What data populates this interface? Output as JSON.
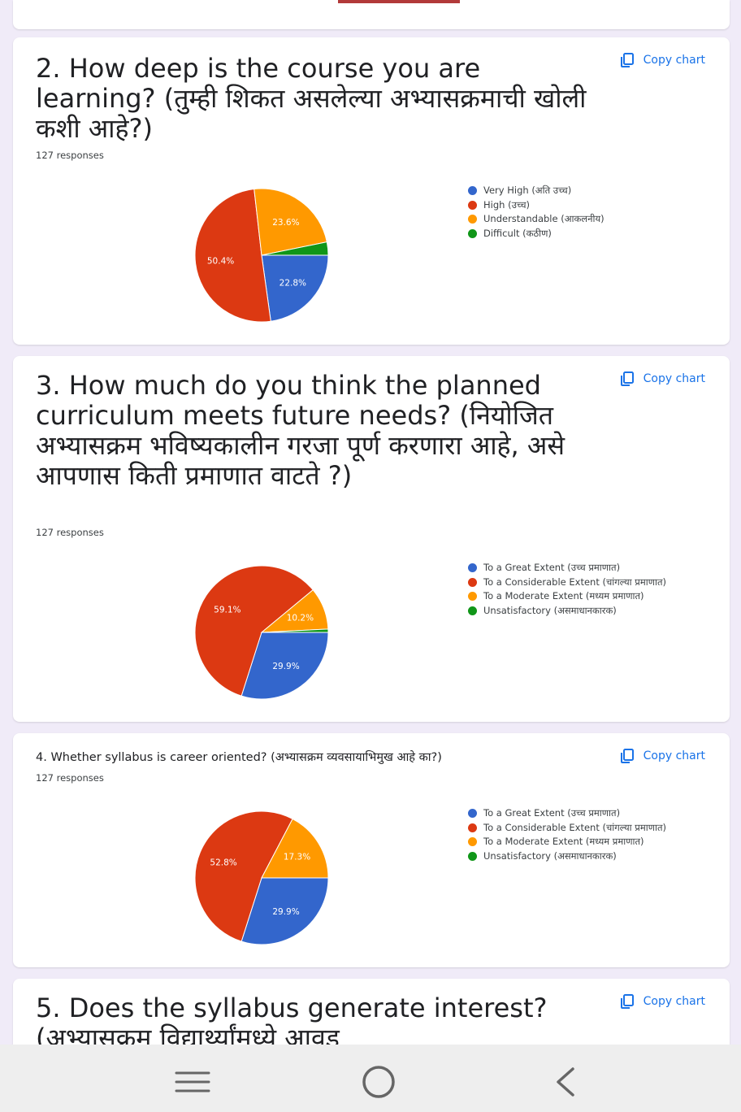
{
  "copy_label": "Copy chart",
  "questions": [
    {
      "title": "2. How deep is the course you are learning? (तुम्ही शिकत असलेल्या अभ्यासक्रमाची खोली कशी आहे?)",
      "responses": "127 responses",
      "legend": [
        {
          "label": "Very High (अति उच्च)",
          "color": "#3366cc"
        },
        {
          "label": "High (उच्च)",
          "color": "#dc3912"
        },
        {
          "label": "Understandable (आकलनीय)",
          "color": "#ff9900"
        },
        {
          "label": "Difficult (कठीण)",
          "color": "#109618"
        }
      ]
    },
    {
      "title": "3. How much do you think the planned curriculum meets future needs? (नियोजित अभ्यासक्रम भविष्यकालीन गरजा पूर्ण करणारा आहे, असे आपणास किती प्रमाणात वाटते ?)",
      "responses": "127 responses",
      "legend": [
        {
          "label": "To a Great Extent (उच्च प्रमाणात)",
          "color": "#3366cc"
        },
        {
          "label": "To a Considerable Extent (चांगल्या प्रमाणात)",
          "color": "#dc3912"
        },
        {
          "label": "To a Moderate Extent (मध्यम प्रमाणात)",
          "color": "#ff9900"
        },
        {
          "label": "Unsatisfactory (असमाधानकारक)",
          "color": "#109618"
        }
      ]
    },
    {
      "title": "4. Whether syllabus is career oriented? (अभ्यासक्रम व्यवसायाभिमुख आहे का?)",
      "responses": "127 responses",
      "legend": [
        {
          "label": "To a Great Extent (उच्च प्रमाणात)",
          "color": "#3366cc"
        },
        {
          "label": "To a Considerable Extent (चांगल्या प्रमाणात)",
          "color": "#dc3912"
        },
        {
          "label": "To a Moderate Extent (मध्यम प्रमाणात)",
          "color": "#ff9900"
        },
        {
          "label": "Unsatisfactory (असमाधानकारक)",
          "color": "#109618"
        }
      ]
    },
    {
      "title": "5. Does the syllabus generate interest? (अभ्यासक्रम विद्यार्थ्यांमध्ये आवड"
    }
  ],
  "chart_data": [
    {
      "type": "pie",
      "categories": [
        "Very High (अति उच्च)",
        "High (उच्च)",
        "Understandable (आकलनीय)",
        "Difficult (कठीण)"
      ],
      "values": [
        22.8,
        50.4,
        23.6,
        3.2
      ],
      "data_labels": [
        "22.8%",
        "50.4%",
        "23.6%",
        ""
      ],
      "legend_position": "right"
    },
    {
      "type": "pie",
      "categories": [
        "To a Great Extent (उच्च प्रमाणात)",
        "To a Considerable Extent (चांगल्या प्रमाणात)",
        "To a Moderate Extent (मध्यम प्रमाणात)",
        "Unsatisfactory (असमाधानकारक)"
      ],
      "values": [
        29.9,
        59.1,
        10.2,
        0.8
      ],
      "data_labels": [
        "29.9%",
        "59.1%",
        "10.2%",
        ""
      ],
      "legend_position": "right"
    },
    {
      "type": "pie",
      "categories": [
        "To a Great Extent (उच्च प्रमाणात)",
        "To a Considerable Extent (चांगल्या प्रमाणात)",
        "To a Moderate Extent (मध्यम प्रमाणात)",
        "Unsatisfactory (असमाधानकारक)"
      ],
      "values": [
        29.9,
        52.8,
        17.3,
        0
      ],
      "data_labels": [
        "29.9%",
        "52.8%",
        "17.3%",
        ""
      ],
      "legend_position": "right"
    }
  ]
}
